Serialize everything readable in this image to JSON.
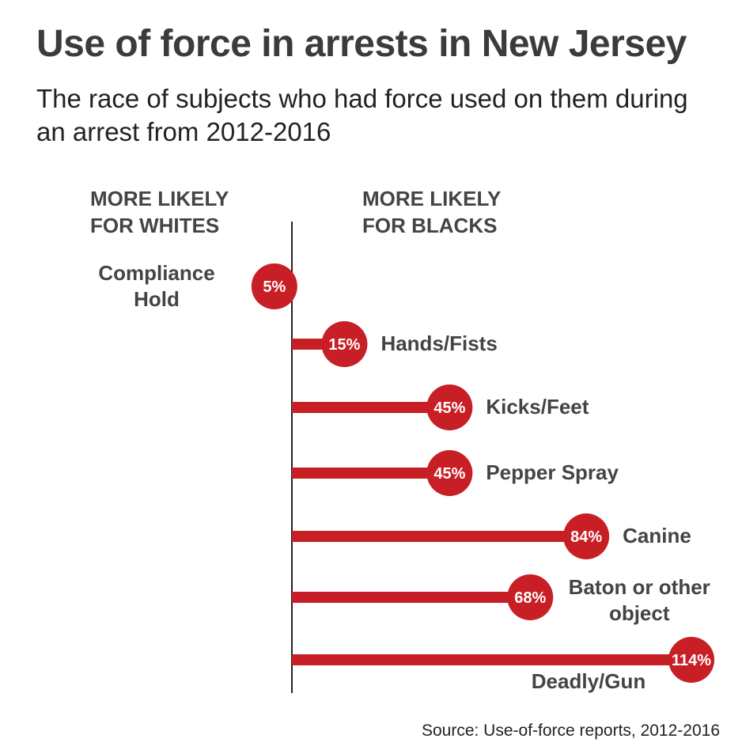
{
  "header": {
    "title": "Use of force in arrests in New Jersey",
    "subtitle": "The race of subjects who had force used on them during an arrest from 2012-2016"
  },
  "footer": {
    "source": "Source: Use-of-force reports, 2012-2016"
  },
  "chart_data": {
    "type": "bar",
    "orientation": "horizontal",
    "direction_labels": {
      "left": "MORE LIKELY\nFOR WHITES",
      "right": "MORE LIKELY\nFOR BLACKS"
    },
    "categories": [
      "Compliance\nHold",
      "Hands/Fists",
      "Kicks/Feet",
      "Pepper Spray",
      "Canine",
      "Baton or other\nobject",
      "Deadly/Gun"
    ],
    "values": [
      -5,
      15,
      45,
      45,
      84,
      68,
      114
    ],
    "value_labels": [
      "5%",
      "15%",
      "45%",
      "45%",
      "84%",
      "68%",
      "114%"
    ],
    "unit": "%",
    "grid": false,
    "colors": {
      "bar": "#c81e25",
      "dot": "#c81e25",
      "axis": "#222222",
      "label": "#444444",
      "dot_text": "#ffffff"
    }
  }
}
